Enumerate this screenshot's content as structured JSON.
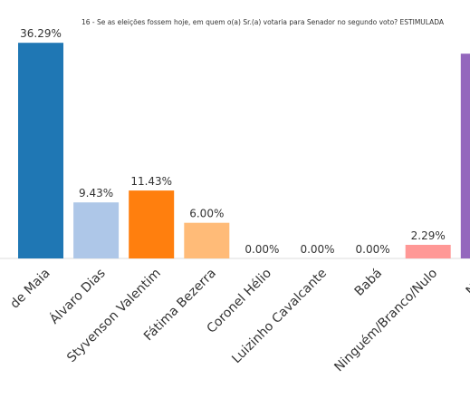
{
  "chart_data": {
    "type": "bar",
    "title": "16 - Se as eleições fossem hoje, em quem o(a) Sr.(a) votaria para Senador no segundo voto? ESTIMULADA",
    "categories": [
      "de Maia",
      "Álvaro Dias",
      "Styvenson Valentim",
      "Fátima Bezerra",
      "Coronel Hélio",
      "Luizinho Cavalcante",
      "Babá",
      "Ninguém/Branco/Nulo",
      "NS/N"
    ],
    "values": [
      36.29,
      9.43,
      11.43,
      6.0,
      0.0,
      0.0,
      0.0,
      2.29,
      34.46
    ],
    "value_labels": [
      "36.29%",
      "9.43%",
      "11.43%",
      "6.00%",
      "0.00%",
      "0.00%",
      "0.00%",
      "2.29%",
      null
    ],
    "colors": [
      "#1f77b4",
      "#aec7e8",
      "#ff7f0e",
      "#ffbb78",
      "#2ca02c",
      "#98df8a",
      "#d62728",
      "#ff9896",
      "#9467bd"
    ],
    "ylim": [
      0,
      38
    ]
  }
}
